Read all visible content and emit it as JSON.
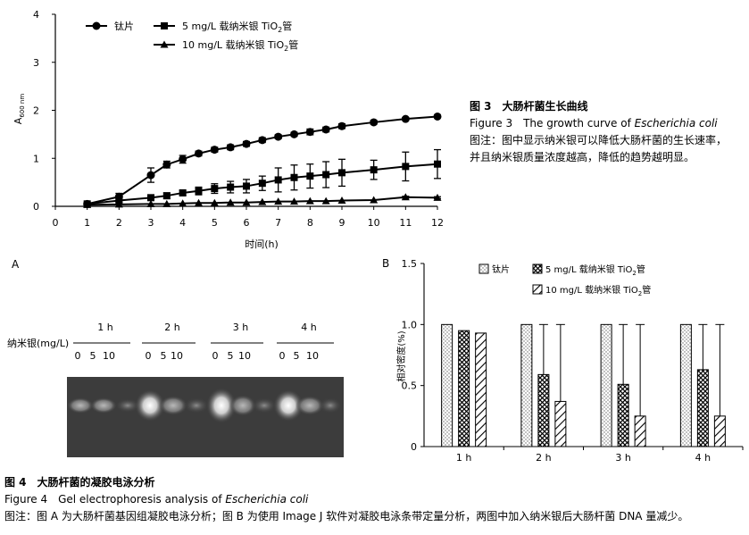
{
  "figure3": {
    "caption_title": "图 3　大肠杆菌生长曲线",
    "caption_en_prefix": "Figure 3　The growth curve of ",
    "caption_en_italic": "Escherichia coli",
    "caption_note_line1": "图注：图中显示纳米银可以降低大肠杆菌的生长速率，",
    "caption_note_line2": "并且纳米银质量浓度越高，降低的趋势越明显。"
  },
  "panelA": {
    "label": "A",
    "row_label": "纳米银(mg/L)",
    "time_groups": [
      "1 h",
      "2 h",
      "3 h",
      "4 h"
    ],
    "concentrations": [
      "0",
      "5",
      "10"
    ]
  },
  "figure4": {
    "caption_title": "图 4　大肠杆菌的凝胶电泳分析",
    "caption_en_prefix": "Figure 4　Gel electrophoresis analysis of ",
    "caption_en_italic": "Escherichia coli",
    "caption_note": "图注：图 A 为大肠杆菌基因组凝胶电泳分析；图 B 为使用 Image J 软件对凝胶电泳条带定量分析，两图中加入纳米银后大肠杆菌 DNA 量减少。"
  },
  "chart_data": [
    {
      "type": "line",
      "xlabel": "时间(h)",
      "ylabel_main": "A",
      "ylabel_sub": "600 nm",
      "xlim": [
        0,
        12
      ],
      "ylim": [
        0,
        4
      ],
      "xticks": [
        0,
        1,
        2,
        3,
        4,
        5,
        6,
        7,
        8,
        9,
        10,
        11,
        12
      ],
      "yticks": [
        0,
        1,
        2,
        3,
        4
      ],
      "legend_position": "top-left",
      "series": [
        {
          "name": "钛片",
          "marker": "circle",
          "x": [
            1,
            2,
            3,
            3.5,
            4,
            4.5,
            5,
            5.5,
            6,
            6.5,
            7,
            7.5,
            8,
            8.5,
            9,
            10,
            11,
            12
          ],
          "y": [
            0.05,
            0.2,
            0.65,
            0.87,
            0.98,
            1.1,
            1.18,
            1.23,
            1.3,
            1.38,
            1.45,
            1.5,
            1.55,
            1.6,
            1.67,
            1.75,
            1.82,
            1.87
          ],
          "err": [
            0.03,
            0.07,
            0.15,
            0.07,
            0.08,
            0.05,
            0.05,
            0.05,
            0.05,
            0.05,
            0.04,
            0.04,
            0.06,
            0.05,
            0.05,
            0.04,
            0.03,
            0.03
          ]
        },
        {
          "name_prefix": "5 mg/L  载纳米银 TiO",
          "name_sub": "2",
          "name_suffix": "管",
          "marker": "square",
          "x": [
            1,
            2,
            3,
            3.5,
            4,
            4.5,
            5,
            5.5,
            6,
            6.5,
            7,
            7.5,
            8,
            8.5,
            9,
            10,
            11,
            12
          ],
          "y": [
            0.05,
            0.12,
            0.18,
            0.22,
            0.28,
            0.32,
            0.37,
            0.4,
            0.42,
            0.48,
            0.55,
            0.6,
            0.63,
            0.66,
            0.7,
            0.76,
            0.83,
            0.88
          ],
          "err": [
            0.02,
            0.04,
            0.05,
            0.06,
            0.05,
            0.08,
            0.1,
            0.12,
            0.14,
            0.15,
            0.25,
            0.26,
            0.25,
            0.27,
            0.28,
            0.2,
            0.3,
            0.3
          ]
        },
        {
          "name_prefix": "10 mg/L  载纳米银 TiO",
          "name_sub": "2",
          "name_suffix": "管",
          "marker": "triangle",
          "x": [
            1,
            2,
            3,
            3.5,
            4,
            4.5,
            5,
            5.5,
            6,
            6.5,
            7,
            7.5,
            8,
            8.5,
            9,
            10,
            11,
            12
          ],
          "y": [
            0.03,
            0.04,
            0.05,
            0.05,
            0.06,
            0.07,
            0.07,
            0.08,
            0.08,
            0.09,
            0.1,
            0.1,
            0.11,
            0.11,
            0.12,
            0.13,
            0.19,
            0.18
          ],
          "err": [
            0.01,
            0.01,
            0.01,
            0.01,
            0.01,
            0.01,
            0.01,
            0.01,
            0.01,
            0.01,
            0.01,
            0.01,
            0.01,
            0.01,
            0.01,
            0.01,
            0.02,
            0.02
          ]
        }
      ]
    },
    {
      "type": "bar",
      "panel_label": "B",
      "ylabel": "相对密度(%)",
      "ylim": [
        0,
        1.5
      ],
      "yticks": [
        "0",
        "0.5",
        "1.0",
        "1.5"
      ],
      "categories": [
        "1 h",
        "2 h",
        "3 h",
        "4 h"
      ],
      "legend_position": "top-right",
      "series": [
        {
          "name": "钛片",
          "pattern": "dots",
          "values": [
            1.0,
            1.0,
            1.0,
            1.0
          ],
          "err_up": [
            0,
            0,
            0,
            0
          ]
        },
        {
          "name_prefix": "5 mg/L  载纳米银 TiO",
          "name_sub": "2",
          "name_suffix": "管",
          "pattern": "checker",
          "values": [
            0.95,
            0.59,
            0.51,
            0.63
          ],
          "err_up": [
            0,
            0.41,
            0.49,
            0.37
          ]
        },
        {
          "name_prefix": "10 mg/L  载纳米银 TiO",
          "name_sub": "2",
          "name_suffix": "管",
          "pattern": "diag",
          "values": [
            0.93,
            0.37,
            0.25,
            0.25
          ],
          "err_up": [
            0,
            0.63,
            0.75,
            0.75
          ]
        }
      ]
    }
  ]
}
